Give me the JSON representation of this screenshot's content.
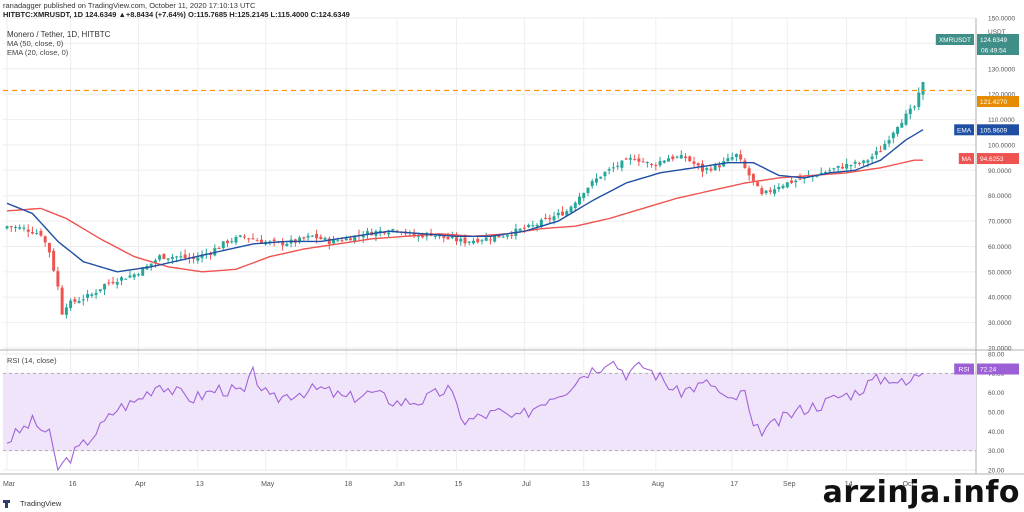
{
  "header": {
    "publisher": "ranadagger published on TradingView.com, October 11, 2020 17:10:13 UTC",
    "ticker_line": "HITBTC:XMRUSDT, 1D  124.6349  ▲+8.8434 (+7.64%)  O:115.7685  H:125.2145  L:115.4000  C:124.6349"
  },
  "legend": {
    "title": "Monero / Tether, 1D, HITBTC",
    "ma": "MA (50, close, 0)",
    "ema": "EMA (20, close, 0)",
    "rsi": "RSI (14, close)"
  },
  "footer": {
    "logo_text": "TradingView"
  },
  "watermark": "arzinja.info",
  "colors": {
    "up": "#26a69a",
    "down": "#ef5350",
    "ema": "#1e4fa3",
    "ma": "#ef5350",
    "rsi": "#a064d8",
    "rsi_band": "#f0e4fb",
    "dashed": "#ff9800",
    "grid": "#eeeeee",
    "axis_text": "#555555"
  },
  "chart_data": [
    {
      "type": "candlestick",
      "title": "Monero / Tether, 1D, HITBTC",
      "ylabel": "USDT",
      "ylim": [
        20,
        150
      ],
      "yticks": [
        "150.0000",
        "140.0000",
        "130.0000",
        "120.0000",
        "110.0000",
        "100.0000",
        "90.0000",
        "80.0000",
        "70.0000",
        "60.0000",
        "50.0000",
        "40.0000",
        "30.0000",
        "20.0000"
      ],
      "xticks": [
        "Mar",
        "16",
        "Apr",
        "13",
        "May",
        "18",
        "Jun",
        "15",
        "Jul",
        "13",
        "Aug",
        "17",
        "Sep",
        "14",
        "Oct"
      ],
      "grid": true,
      "price_labels": [
        {
          "name": "XMRUSDT",
          "value": "124.6349",
          "extra": "06:49:54"
        },
        {
          "name": "",
          "value": "121.4270"
        },
        {
          "name": "EMA",
          "value": "105.9609"
        },
        {
          "name": "MA",
          "value": "94.6253"
        }
      ],
      "resistance_level": 121.427,
      "close_anchors": [
        [
          0,
          68
        ],
        [
          4,
          67
        ],
        [
          8,
          65
        ],
        [
          10,
          58
        ],
        [
          12,
          44
        ],
        [
          13,
          34
        ],
        [
          14,
          37
        ],
        [
          17,
          39
        ],
        [
          20,
          41
        ],
        [
          23,
          45
        ],
        [
          26,
          47
        ],
        [
          30,
          49
        ],
        [
          33,
          52
        ],
        [
          36,
          56
        ],
        [
          40,
          56
        ],
        [
          44,
          55
        ],
        [
          48,
          58
        ],
        [
          52,
          62
        ],
        [
          56,
          64
        ],
        [
          60,
          62
        ],
        [
          64,
          61
        ],
        [
          68,
          62
        ],
        [
          72,
          64
        ],
        [
          76,
          62
        ],
        [
          80,
          63
        ],
        [
          84,
          65
        ],
        [
          88,
          66
        ],
        [
          92,
          67
        ],
        [
          96,
          64
        ],
        [
          100,
          65
        ],
        [
          104,
          63
        ],
        [
          108,
          62
        ],
        [
          112,
          63
        ],
        [
          116,
          64
        ],
        [
          120,
          66
        ],
        [
          124,
          68
        ],
        [
          128,
          71
        ],
        [
          132,
          74
        ],
        [
          136,
          82
        ],
        [
          140,
          88
        ],
        [
          144,
          92
        ],
        [
          148,
          95
        ],
        [
          152,
          92
        ],
        [
          156,
          95
        ],
        [
          160,
          95
        ],
        [
          164,
          90
        ],
        [
          168,
          92
        ],
        [
          172,
          96
        ],
        [
          175,
          88
        ],
        [
          178,
          80
        ],
        [
          182,
          84
        ],
        [
          186,
          86
        ],
        [
          190,
          88
        ],
        [
          194,
          90
        ],
        [
          198,
          92
        ],
        [
          202,
          93
        ],
        [
          206,
          98
        ],
        [
          210,
          108
        ],
        [
          214,
          115
        ],
        [
          216,
          124
        ]
      ],
      "ma50_anchors": [
        [
          0,
          74
        ],
        [
          8,
          75
        ],
        [
          14,
          71
        ],
        [
          22,
          63
        ],
        [
          30,
          56
        ],
        [
          38,
          52
        ],
        [
          46,
          50
        ],
        [
          54,
          51
        ],
        [
          62,
          56
        ],
        [
          70,
          59
        ],
        [
          78,
          61
        ],
        [
          86,
          63
        ],
        [
          94,
          64
        ],
        [
          102,
          65
        ],
        [
          110,
          64
        ],
        [
          118,
          65
        ],
        [
          126,
          67
        ],
        [
          134,
          68
        ],
        [
          142,
          71
        ],
        [
          150,
          75
        ],
        [
          158,
          79
        ],
        [
          166,
          82
        ],
        [
          174,
          85
        ],
        [
          182,
          87
        ],
        [
          190,
          88
        ],
        [
          198,
          89
        ],
        [
          206,
          91
        ],
        [
          214,
          94
        ]
      ],
      "ema20_anchors": [
        [
          0,
          77
        ],
        [
          6,
          73
        ],
        [
          12,
          62
        ],
        [
          18,
          54
        ],
        [
          26,
          50
        ],
        [
          34,
          52
        ],
        [
          42,
          55
        ],
        [
          50,
          58
        ],
        [
          58,
          61
        ],
        [
          66,
          62
        ],
        [
          74,
          62
        ],
        [
          82,
          64
        ],
        [
          90,
          66
        ],
        [
          98,
          65
        ],
        [
          106,
          64
        ],
        [
          114,
          64
        ],
        [
          122,
          66
        ],
        [
          130,
          70
        ],
        [
          138,
          78
        ],
        [
          146,
          85
        ],
        [
          154,
          89
        ],
        [
          162,
          91
        ],
        [
          170,
          93
        ],
        [
          176,
          93
        ],
        [
          182,
          88
        ],
        [
          188,
          87
        ],
        [
          194,
          89
        ],
        [
          200,
          90
        ],
        [
          206,
          94
        ],
        [
          212,
          102
        ],
        [
          216,
          106
        ]
      ]
    },
    {
      "type": "line",
      "title": "RSI (14, close)",
      "ylim": [
        20,
        80
      ],
      "yticks": [
        "80.00",
        "70.00",
        "60.00",
        "50.00",
        "40.00",
        "30.00",
        "20.00"
      ],
      "bands": [
        30,
        70
      ],
      "last_value": "72.24",
      "anchors": [
        [
          0,
          35
        ],
        [
          6,
          45
        ],
        [
          10,
          38
        ],
        [
          12,
          20
        ],
        [
          14,
          25
        ],
        [
          18,
          33
        ],
        [
          22,
          42
        ],
        [
          26,
          52
        ],
        [
          30,
          55
        ],
        [
          36,
          65
        ],
        [
          40,
          60
        ],
        [
          44,
          57
        ],
        [
          50,
          62
        ],
        [
          56,
          60
        ],
        [
          58,
          70
        ],
        [
          62,
          56
        ],
        [
          68,
          60
        ],
        [
          74,
          62
        ],
        [
          80,
          57
        ],
        [
          86,
          60
        ],
        [
          92,
          55
        ],
        [
          98,
          56
        ],
        [
          104,
          62
        ],
        [
          108,
          45
        ],
        [
          112,
          48
        ],
        [
          116,
          50
        ],
        [
          120,
          46
        ],
        [
          124,
          52
        ],
        [
          128,
          58
        ],
        [
          132,
          62
        ],
        [
          136,
          70
        ],
        [
          140,
          74
        ],
        [
          142,
          78
        ],
        [
          146,
          70
        ],
        [
          150,
          74
        ],
        [
          154,
          68
        ],
        [
          158,
          60
        ],
        [
          162,
          63
        ],
        [
          166,
          65
        ],
        [
          170,
          55
        ],
        [
          174,
          60
        ],
        [
          176,
          40
        ],
        [
          180,
          42
        ],
        [
          184,
          48
        ],
        [
          188,
          52
        ],
        [
          192,
          54
        ],
        [
          196,
          58
        ],
        [
          200,
          60
        ],
        [
          204,
          66
        ],
        [
          208,
          68
        ],
        [
          212,
          64
        ],
        [
          216,
          72
        ]
      ]
    }
  ]
}
